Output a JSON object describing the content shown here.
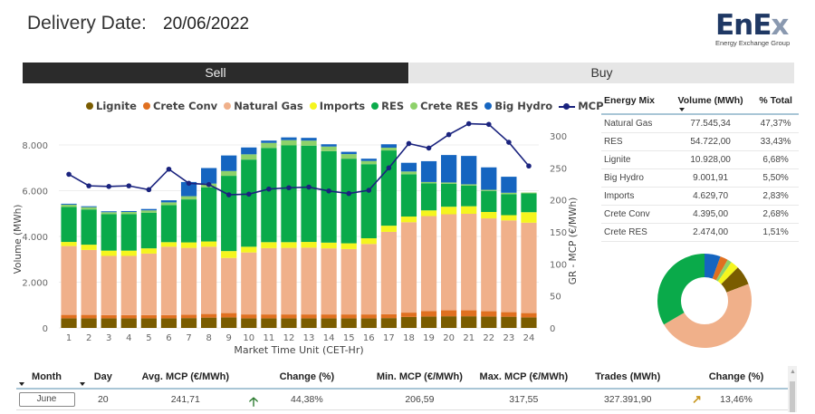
{
  "header": {
    "delivery_label": "Delivery Date:",
    "delivery_value": "20/06/2022",
    "logo_main_a": "EnE",
    "logo_main_b": "x",
    "logo_sub": "Energy Exchange Group"
  },
  "tabs": [
    {
      "label": "Sell",
      "active": true
    },
    {
      "label": "Buy",
      "active": false
    }
  ],
  "colors": {
    "Lignite": "#7a5c00",
    "Crete Conv": "#e07020",
    "Natural Gas": "#f0b08a",
    "Imports": "#f5f51e",
    "RES": "#0aaa4a",
    "Crete RES": "#8ed16a",
    "Big Hydro": "#1565c0",
    "MCP": "#1a237e"
  },
  "chart_data": {
    "type": "bar",
    "stacked": true,
    "title": "",
    "xlabel": "Market Time Unit (CET-Hr)",
    "ylabel": "Volume (MWh)",
    "y2label": "GR - MCP (€/MWh)",
    "ylim": [
      0,
      8000
    ],
    "y2lim": [
      0,
      300
    ],
    "yticks": [
      "0",
      "2.000",
      "4.000",
      "6.000",
      "8.000"
    ],
    "y2ticks": [
      "0",
      "50",
      "100",
      "150",
      "200",
      "250",
      "300"
    ],
    "grid": true,
    "legend_position": "top",
    "categories": [
      "1",
      "2",
      "3",
      "4",
      "5",
      "6",
      "7",
      "8",
      "9",
      "10",
      "11",
      "12",
      "13",
      "14",
      "15",
      "16",
      "17",
      "18",
      "19",
      "20",
      "21",
      "22",
      "23",
      "24"
    ],
    "series": [
      {
        "name": "Lignite",
        "kind": "bar",
        "values": [
          420,
          420,
          420,
          420,
          420,
          420,
          430,
          450,
          460,
          420,
          420,
          420,
          420,
          420,
          420,
          420,
          430,
          480,
          500,
          510,
          510,
          500,
          490,
          460
        ]
      },
      {
        "name": "Crete Conv",
        "kind": "bar",
        "values": [
          150,
          150,
          140,
          140,
          140,
          140,
          150,
          160,
          190,
          170,
          170,
          170,
          170,
          170,
          170,
          170,
          170,
          190,
          240,
          260,
          260,
          230,
          200,
          190
        ]
      },
      {
        "name": "Natural Gas",
        "kind": "bar",
        "values": [
          3010,
          2840,
          2590,
          2590,
          2690,
          2990,
          2920,
          2940,
          2410,
          2710,
          2900,
          2910,
          2920,
          2890,
          2860,
          3080,
          3600,
          3950,
          4150,
          4200,
          4220,
          4060,
          4010,
          3950
        ]
      },
      {
        "name": "Imports",
        "kind": "bar",
        "values": [
          180,
          230,
          230,
          230,
          230,
          200,
          240,
          230,
          300,
          250,
          260,
          250,
          250,
          250,
          250,
          250,
          270,
          250,
          250,
          330,
          330,
          280,
          230,
          460
        ]
      },
      {
        "name": "RES",
        "kind": "bar",
        "values": [
          1530,
          1540,
          1600,
          1600,
          1560,
          1620,
          1880,
          2360,
          3290,
          3810,
          4120,
          4230,
          4210,
          4000,
          3700,
          3240,
          3290,
          1850,
          1180,
          1000,
          900,
          920,
          920,
          820
        ]
      },
      {
        "name": "Crete RES",
        "kind": "bar",
        "values": [
          100,
          100,
          80,
          90,
          100,
          120,
          140,
          170,
          210,
          230,
          220,
          230,
          220,
          200,
          200,
          140,
          120,
          120,
          60,
          60,
          60,
          50,
          60,
          40
        ]
      },
      {
        "name": "Big Hydro",
        "kind": "bar",
        "values": [
          40,
          40,
          40,
          40,
          60,
          90,
          620,
          680,
          680,
          300,
          100,
          120,
          120,
          100,
          100,
          100,
          150,
          380,
          910,
          1200,
          1240,
          980,
          700,
          0
        ]
      },
      {
        "name": "MCP",
        "kind": "line",
        "axis": "right",
        "values": [
          240,
          222,
          221,
          222,
          216,
          248,
          226,
          224,
          208,
          209,
          217,
          219,
          220,
          214,
          210,
          215,
          250,
          288,
          281,
          302,
          319,
          318,
          290,
          253
        ]
      }
    ]
  },
  "mix_table": {
    "headers": [
      "Energy Mix",
      "Volume (MWh)",
      "% Total"
    ],
    "rows": [
      [
        "Natural Gas",
        "77.545,34",
        "47,37%"
      ],
      [
        "RES",
        "54.722,00",
        "33,43%"
      ],
      [
        "Lignite",
        "10.928,00",
        "6,68%"
      ],
      [
        "Big Hydro",
        "9.001,91",
        "5,50%"
      ],
      [
        "Imports",
        "4.629,70",
        "2,83%"
      ],
      [
        "Crete Conv",
        "4.395,00",
        "2,68%"
      ],
      [
        "Crete RES",
        "2.474,00",
        "1,51%"
      ]
    ]
  },
  "donut": {
    "slices": [
      {
        "name": "Big Hydro",
        "value": 5.5
      },
      {
        "name": "Crete Conv",
        "value": 2.68
      },
      {
        "name": "Crete RES",
        "value": 1.51
      },
      {
        "name": "Imports",
        "value": 2.83
      },
      {
        "name": "Lignite",
        "value": 6.68
      },
      {
        "name": "Natural Gas",
        "value": 47.37
      },
      {
        "name": "RES",
        "value": 33.43
      }
    ]
  },
  "summary": {
    "headers": [
      "Month",
      "Day",
      "Avg. MCP (€/MWh)",
      "Change (%)",
      "Min. MCP (€/MWh)",
      "Max. MCP (€/MWh)",
      "Trades (MWh)",
      "Change (%)"
    ],
    "row": {
      "month": "June",
      "day": "20",
      "avg_mcp": "241,71",
      "avg_change_icon": "arrow-up",
      "avg_change": "44,38%",
      "min_mcp": "206,59",
      "max_mcp": "317,55",
      "trades": "327.391,90",
      "trades_change_icon": "arrow-up-right",
      "trades_change": "13,46%"
    }
  }
}
